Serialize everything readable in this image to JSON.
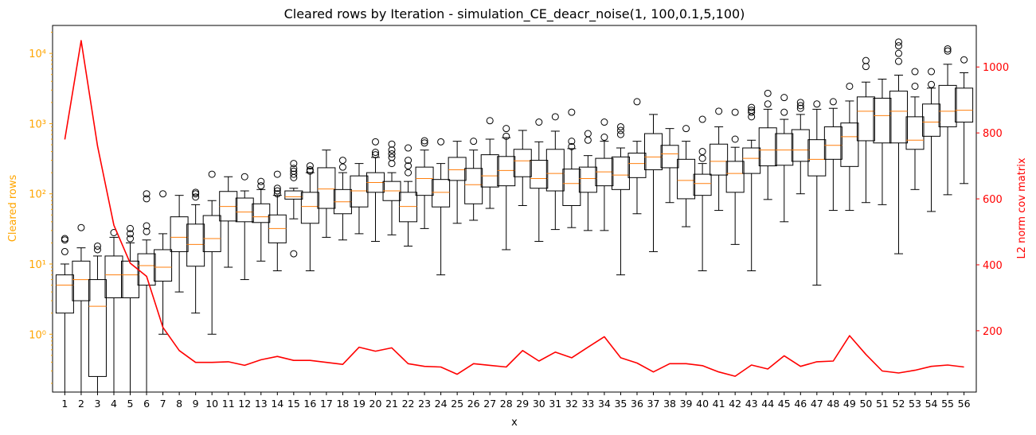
{
  "chart_data": {
    "type": "box",
    "title": "Cleared rows by Iteration - simulation_CE_deacr_noise(1, 100,0.1,5,100)",
    "xlabel": "x",
    "ylabel_left": "Cleared rows",
    "ylabel_right": "L2 norm cov matrix",
    "left_color": "#ffa500",
    "right_color": "#ff0000",
    "median_color": "#ff7f0e",
    "line_color": "#ff0000",
    "yscale_left": "log",
    "ylim_left": [
      0.15,
      25000
    ],
    "ylim_right": [
      14,
      1126
    ],
    "yticks_left": [
      1,
      10,
      100,
      1000,
      10000
    ],
    "yticks_left_labels": [
      "10⁰",
      "10¹",
      "10²",
      "10³",
      "10⁴"
    ],
    "yticks_right": [
      200,
      400,
      600,
      800,
      1000
    ],
    "categories": [
      "1",
      "2",
      "3",
      "4",
      "5",
      "6",
      "7",
      "8",
      "9",
      "10",
      "11",
      "12",
      "13",
      "14",
      "15",
      "16",
      "17",
      "18",
      "19",
      "20",
      "21",
      "22",
      "23",
      "24",
      "25",
      "26",
      "27",
      "28",
      "29",
      "30",
      "31",
      "32",
      "33",
      "34",
      "35",
      "36",
      "37",
      "38",
      "39",
      "40",
      "41",
      "42",
      "43",
      "44",
      "45",
      "46",
      "47",
      "48",
      "49",
      "50",
      "51",
      "52",
      "53",
      "54",
      "55",
      "56"
    ],
    "boxes": [
      {
        "min": 0.1,
        "q1": 2,
        "median": 5,
        "q3": 7,
        "max": 10,
        "outliers": [
          15,
          22,
          23
        ]
      },
      {
        "min": 0.1,
        "q1": 3,
        "median": 6,
        "q3": 11,
        "max": 17,
        "outliers": [
          33
        ]
      },
      {
        "min": 0.1,
        "q1": 0.25,
        "median": 2.5,
        "q3": 6,
        "max": 13,
        "outliers": [
          16,
          18
        ]
      },
      {
        "min": 0.1,
        "q1": 3.3,
        "median": 7,
        "q3": 13,
        "max": 24,
        "outliers": [
          28
        ]
      },
      {
        "min": 0.1,
        "q1": 3.3,
        "median": 7,
        "q3": 11,
        "max": 20,
        "outliers": [
          23,
          27,
          32
        ]
      },
      {
        "min": 0.1,
        "q1": 5,
        "median": 9.5,
        "q3": 14,
        "max": 22,
        "outliers": [
          29,
          35,
          85,
          100
        ]
      },
      {
        "min": 1,
        "q1": 5.7,
        "median": 9,
        "q3": 16,
        "max": 27,
        "outliers": [
          100
        ]
      },
      {
        "min": 4,
        "q1": 15,
        "median": 24,
        "q3": 47,
        "max": 95,
        "outliers": []
      },
      {
        "min": 2,
        "q1": 9.3,
        "median": 19,
        "q3": 37,
        "max": 70,
        "outliers": [
          90,
          100,
          105
        ]
      },
      {
        "min": 1,
        "q1": 15,
        "median": 23,
        "q3": 49,
        "max": 80,
        "outliers": [
          190
        ]
      },
      {
        "min": 9,
        "q1": 41,
        "median": 66,
        "q3": 108,
        "max": 175,
        "outliers": []
      },
      {
        "min": 6,
        "q1": 40,
        "median": 55,
        "q3": 87,
        "max": 110,
        "outliers": [
          175
        ]
      },
      {
        "min": 11,
        "q1": 39,
        "median": 47,
        "q3": 72,
        "max": 115,
        "outliers": [
          130,
          150
        ]
      },
      {
        "min": 8,
        "q1": 20,
        "median": 32,
        "q3": 50,
        "max": 95,
        "outliers": [
          100,
          110,
          120,
          190
        ]
      },
      {
        "min": 44,
        "q1": 84,
        "median": 91,
        "q3": 110,
        "max": 120,
        "outliers": [
          14,
          170,
          190,
          210,
          230,
          270
        ]
      },
      {
        "min": 8,
        "q1": 38,
        "median": 66,
        "q3": 105,
        "max": 200,
        "outliers": [
          210,
          220,
          250
        ]
      },
      {
        "min": 24,
        "q1": 62,
        "median": 117,
        "q3": 235,
        "max": 420,
        "outliers": []
      },
      {
        "min": 22,
        "q1": 52,
        "median": 77,
        "q3": 115,
        "max": 200,
        "outliers": [
          240,
          300
        ]
      },
      {
        "min": 27,
        "q1": 65,
        "median": 110,
        "q3": 180,
        "max": 270,
        "outliers": []
      },
      {
        "min": 21,
        "q1": 105,
        "median": 145,
        "q3": 200,
        "max": 330,
        "outliers": [
          360,
          390,
          550
        ]
      },
      {
        "min": 26,
        "q1": 80,
        "median": 110,
        "q3": 150,
        "max": 200,
        "outliers": [
          270,
          330,
          370,
          420,
          510
        ]
      },
      {
        "min": 18,
        "q1": 40,
        "median": 66,
        "q3": 105,
        "max": 150,
        "outliers": [
          200,
          250,
          300,
          450
        ]
      },
      {
        "min": 32,
        "q1": 95,
        "median": 165,
        "q3": 240,
        "max": 420,
        "outliers": [
          530,
          570
        ]
      },
      {
        "min": 7,
        "q1": 65,
        "median": 105,
        "q3": 160,
        "max": 270,
        "outliers": [
          550
        ]
      },
      {
        "min": 38,
        "q1": 155,
        "median": 220,
        "q3": 330,
        "max": 560,
        "outliers": []
      },
      {
        "min": 42,
        "q1": 72,
        "median": 135,
        "q3": 230,
        "max": 420,
        "outliers": [
          560
        ]
      },
      {
        "min": 62,
        "q1": 125,
        "median": 180,
        "q3": 360,
        "max": 600,
        "outliers": [
          1100
        ]
      },
      {
        "min": 16,
        "q1": 130,
        "median": 215,
        "q3": 340,
        "max": 630,
        "outliers": [
          660,
          850
        ]
      },
      {
        "min": 68,
        "q1": 175,
        "median": 295,
        "q3": 430,
        "max": 800,
        "outliers": []
      },
      {
        "min": 21,
        "q1": 120,
        "median": 165,
        "q3": 300,
        "max": 550,
        "outliers": [
          1050
        ]
      },
      {
        "min": 31,
        "q1": 110,
        "median": 195,
        "q3": 430,
        "max": 780,
        "outliers": [
          1250
        ]
      },
      {
        "min": 33,
        "q1": 68,
        "median": 140,
        "q3": 225,
        "max": 440,
        "outliers": [
          470,
          560,
          1450
        ]
      },
      {
        "min": 30,
        "q1": 105,
        "median": 165,
        "q3": 240,
        "max": 350,
        "outliers": [
          580,
          720
        ]
      },
      {
        "min": 30,
        "q1": 130,
        "median": 205,
        "q3": 320,
        "max": 560,
        "outliers": [
          640,
          1050
        ]
      },
      {
        "min": 7,
        "q1": 115,
        "median": 185,
        "q3": 335,
        "max": 450,
        "outliers": [
          700,
          800,
          900
        ]
      },
      {
        "min": 52,
        "q1": 170,
        "median": 270,
        "q3": 380,
        "max": 560,
        "outliers": [
          2050
        ]
      },
      {
        "min": 15,
        "q1": 220,
        "median": 335,
        "q3": 720,
        "max": 1350,
        "outliers": []
      },
      {
        "min": 75,
        "q1": 235,
        "median": 370,
        "q3": 490,
        "max": 850,
        "outliers": []
      },
      {
        "min": 34,
        "q1": 85,
        "median": 155,
        "q3": 310,
        "max": 560,
        "outliers": [
          850
        ]
      },
      {
        "min": 8,
        "q1": 95,
        "median": 140,
        "q3": 190,
        "max": 270,
        "outliers": [
          320,
          400,
          1150
        ]
      },
      {
        "min": 58,
        "q1": 185,
        "median": 290,
        "q3": 510,
        "max": 900,
        "outliers": [
          1500
        ]
      },
      {
        "min": 19,
        "q1": 105,
        "median": 195,
        "q3": 290,
        "max": 460,
        "outliers": [
          600,
          1450
        ]
      },
      {
        "min": 8,
        "q1": 195,
        "median": 320,
        "q3": 450,
        "max": 580,
        "outliers": [
          1250,
          1450,
          1550,
          1700
        ]
      },
      {
        "min": 83,
        "q1": 250,
        "median": 420,
        "q3": 870,
        "max": 1600,
        "outliers": [
          1900,
          2700
        ]
      },
      {
        "min": 40,
        "q1": 255,
        "median": 420,
        "q3": 720,
        "max": 1150,
        "outliers": [
          1450,
          2350
        ]
      },
      {
        "min": 100,
        "q1": 290,
        "median": 420,
        "q3": 820,
        "max": 1350,
        "outliers": [
          1650,
          1800,
          2000
        ]
      },
      {
        "min": 5,
        "q1": 180,
        "median": 310,
        "q3": 590,
        "max": 1600,
        "outliers": [
          1900
        ]
      },
      {
        "min": 58,
        "q1": 310,
        "median": 490,
        "q3": 900,
        "max": 1650,
        "outliers": [
          2050
        ]
      },
      {
        "min": 58,
        "q1": 245,
        "median": 650,
        "q3": 1020,
        "max": 2100,
        "outliers": [
          3400
        ]
      },
      {
        "min": 75,
        "q1": 570,
        "median": 1500,
        "q3": 2400,
        "max": 3900,
        "outliers": [
          6500,
          7900
        ]
      },
      {
        "min": 70,
        "q1": 530,
        "median": 1300,
        "q3": 2300,
        "max": 4300,
        "outliers": []
      },
      {
        "min": 14,
        "q1": 530,
        "median": 1500,
        "q3": 2900,
        "max": 4900,
        "outliers": [
          7700,
          10000,
          12800,
          14500
        ]
      },
      {
        "min": 115,
        "q1": 430,
        "median": 580,
        "q3": 1250,
        "max": 2400,
        "outliers": [
          3400,
          5500
        ]
      },
      {
        "min": 56,
        "q1": 660,
        "median": 1050,
        "q3": 1900,
        "max": 3200,
        "outliers": [
          3600,
          5500
        ]
      },
      {
        "min": 97,
        "q1": 900,
        "median": 1500,
        "q3": 3500,
        "max": 7000,
        "outliers": [
          10800,
          11600
        ]
      },
      {
        "min": 140,
        "q1": 1050,
        "median": 1550,
        "q3": 3200,
        "max": 5300,
        "outliers": [
          8100
        ]
      }
    ],
    "l2_norm": [
      780,
      1080,
      760,
      520,
      405,
      365,
      210,
      140,
      104,
      104,
      106,
      95,
      112,
      122,
      110,
      110,
      104,
      98,
      150,
      138,
      148,
      100,
      92,
      90,
      68,
      100,
      95,
      90,
      140,
      108,
      135,
      118,
      150,
      182,
      118,
      102,
      75,
      100,
      100,
      94,
      75,
      62,
      96,
      84,
      124,
      92,
      106,
      108,
      185,
      128,
      78,
      72,
      80,
      92,
      96,
      90
    ]
  }
}
